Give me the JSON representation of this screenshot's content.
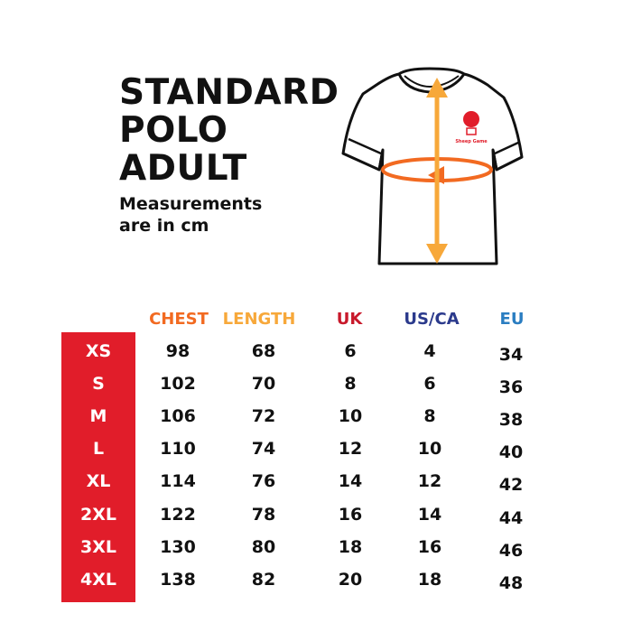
{
  "title": {
    "line1": "STANDARD",
    "line2": "POLO",
    "line3": "ADULT",
    "sub1": "Measurements",
    "sub2": "are in cm"
  },
  "logo_text": "Sheep Game",
  "colors": {
    "chest": "#f26a21",
    "length": "#f7a83a",
    "uk": "#c8192b",
    "usca": "#2b3a8c",
    "eu": "#2a7dc1",
    "size_bar": "#e11d2a"
  },
  "table": {
    "headers": {
      "chest": "CHEST",
      "length": "LENGTH",
      "uk": "UK",
      "usca": "US/CA",
      "eu": "EU"
    },
    "rows": [
      {
        "size": "XS",
        "chest": "98",
        "length": "68",
        "uk": "6",
        "usca": "4",
        "eu": "34"
      },
      {
        "size": "S",
        "chest": "102",
        "length": "70",
        "uk": "8",
        "usca": "6",
        "eu": "36"
      },
      {
        "size": "M",
        "chest": "106",
        "length": "72",
        "uk": "10",
        "usca": "8",
        "eu": "38"
      },
      {
        "size": "L",
        "chest": "110",
        "length": "74",
        "uk": "12",
        "usca": "10",
        "eu": "40"
      },
      {
        "size": "XL",
        "chest": "114",
        "length": "76",
        "uk": "14",
        "usca": "12",
        "eu": "42"
      },
      {
        "size": "2XL",
        "chest": "122",
        "length": "78",
        "uk": "16",
        "usca": "14",
        "eu": "44"
      },
      {
        "size": "3XL",
        "chest": "130",
        "length": "80",
        "uk": "18",
        "usca": "16",
        "eu": "46"
      },
      {
        "size": "4XL",
        "chest": "138",
        "length": "82",
        "uk": "20",
        "usca": "18",
        "eu": "48"
      }
    ]
  }
}
